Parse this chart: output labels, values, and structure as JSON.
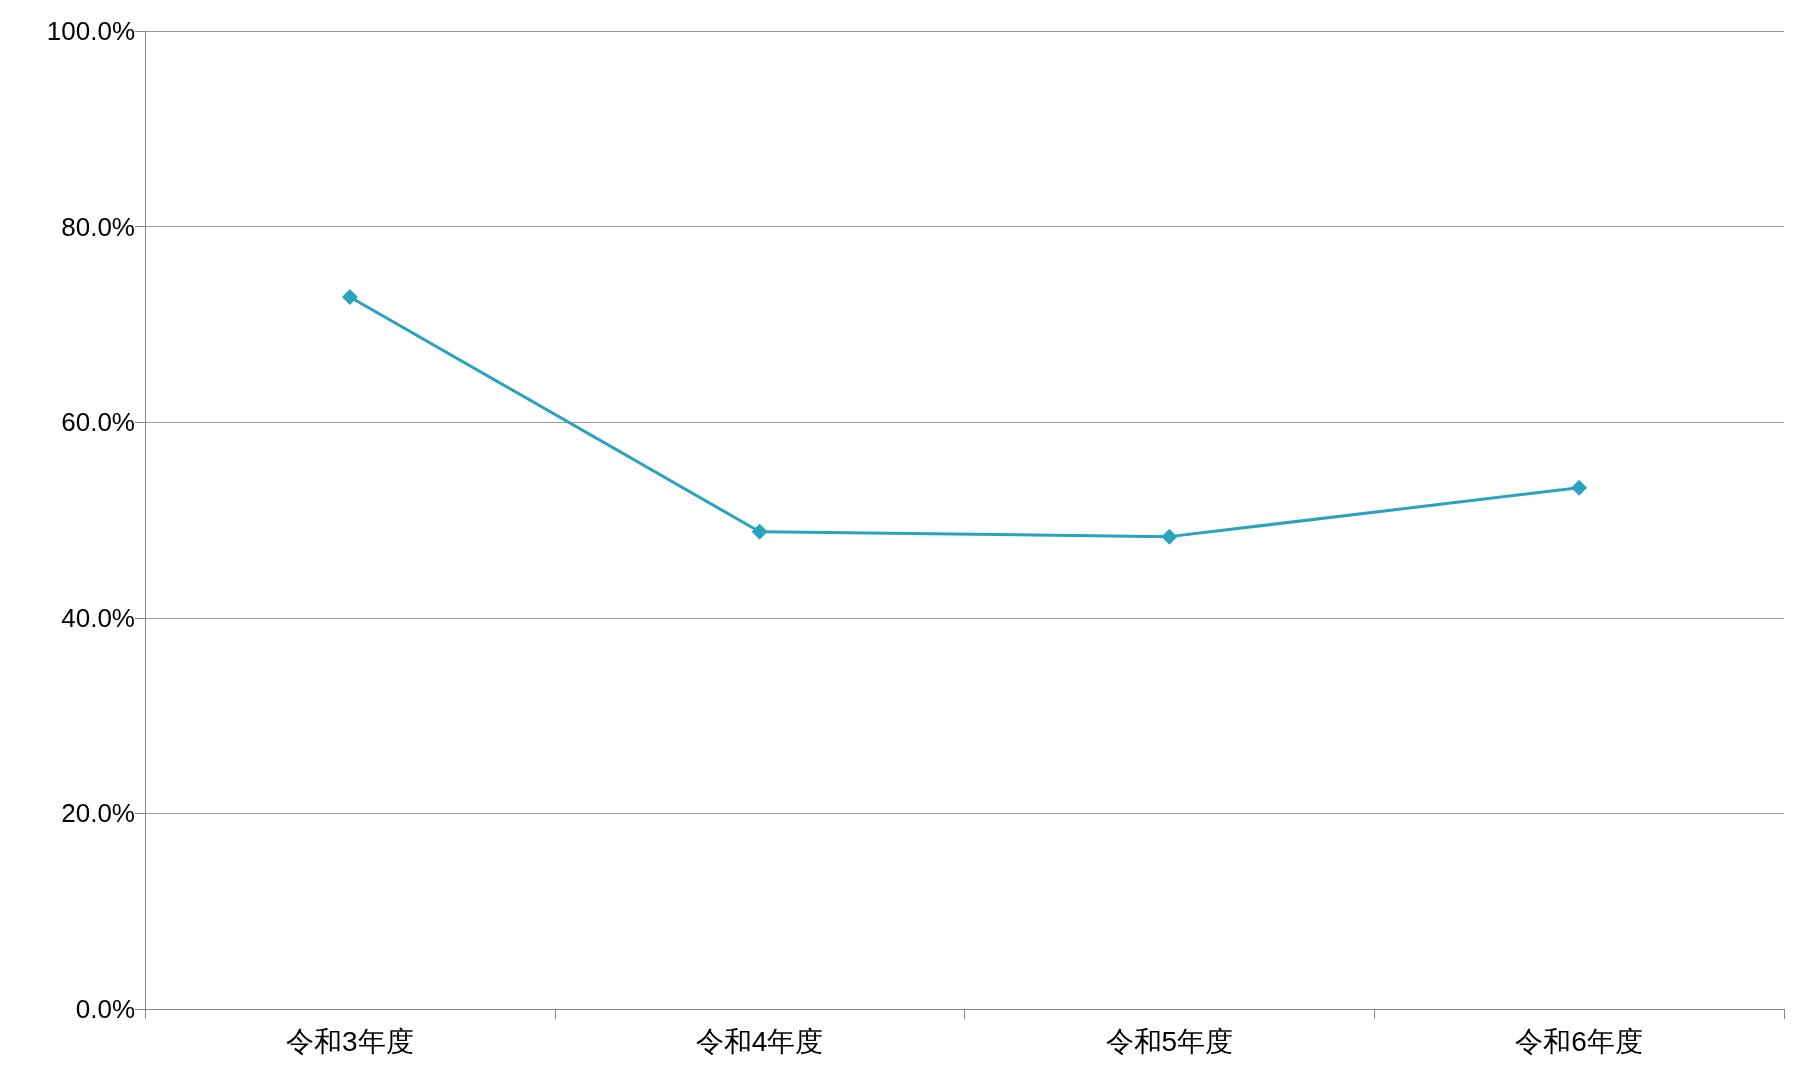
{
  "chart_data": {
    "type": "line",
    "categories": [
      "令和3年度",
      "令和4年度",
      "令和5年度",
      "令和6年度"
    ],
    "series": [
      {
        "color": "#2aa3bf",
        "values": [
          72.8,
          48.8,
          48.3,
          53.3
        ]
      }
    ],
    "ylim": [
      0,
      100
    ],
    "yticks": [
      {
        "value": 0,
        "label": "0.0%"
      },
      {
        "value": 20,
        "label": "20.0%"
      },
      {
        "value": 40,
        "label": "40.0%"
      },
      {
        "value": 60,
        "label": "60.0%"
      },
      {
        "value": 80,
        "label": "80.0%"
      },
      {
        "value": 100,
        "label": "100.0%"
      }
    ],
    "grid": "y",
    "marker": "diamond",
    "line_style": "solid"
  }
}
